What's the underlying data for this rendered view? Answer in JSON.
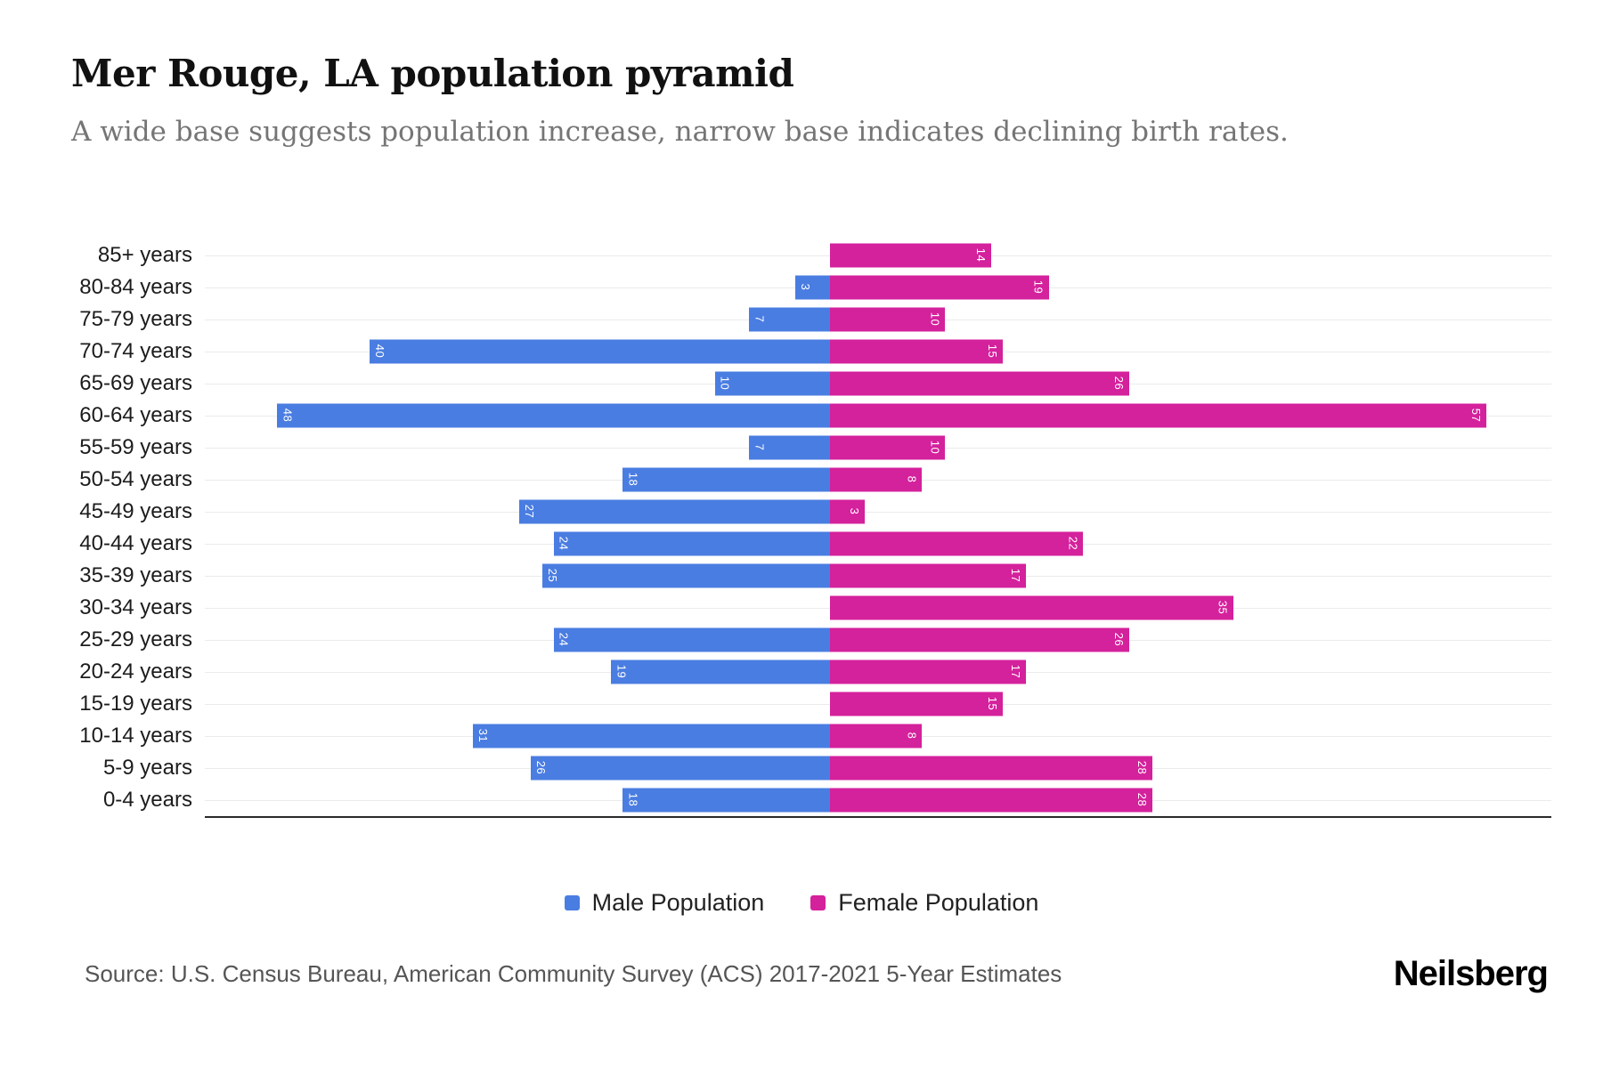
{
  "header": {
    "title": "Mer Rouge, LA population pyramid",
    "subtitle": "A wide base suggests population increase, narrow base indicates declining birth rates."
  },
  "chart_data": {
    "type": "bar",
    "orientation": "horizontal-pyramid",
    "title": "Mer Rouge, LA population pyramid",
    "subtitle": "A wide base suggests population increase, narrow base indicates declining birth rates.",
    "categories": [
      "85+ years",
      "80-84 years",
      "75-79 years",
      "70-74 years",
      "65-69 years",
      "60-64 years",
      "55-59 years",
      "50-54 years",
      "45-49 years",
      "40-44 years",
      "35-39 years",
      "30-34 years",
      "25-29 years",
      "20-24 years",
      "15-19 years",
      "10-14 years",
      "5-9 years",
      "0-4 years"
    ],
    "series": [
      {
        "name": "Male Population",
        "side": "left",
        "color": "#4a7de1",
        "values": [
          0,
          3,
          7,
          40,
          10,
          48,
          7,
          18,
          27,
          24,
          25,
          0,
          24,
          19,
          0,
          31,
          26,
          18
        ]
      },
      {
        "name": "Female Population",
        "side": "right",
        "color": "#d4219c",
        "values": [
          14,
          19,
          10,
          15,
          26,
          57,
          10,
          8,
          3,
          22,
          17,
          35,
          26,
          17,
          15,
          8,
          28,
          28
        ]
      }
    ],
    "value_range": [
      0,
      57
    ],
    "xlabel": "",
    "ylabel": "",
    "grid": "horizontal-light",
    "legend_position": "bottom",
    "bar_labels": "values shown rotated inside bars in white"
  },
  "footer": {
    "source": "Source: U.S. Census Bureau, American Community Survey (ACS) 2017-2021 5-Year Estimates",
    "logo": "Neilsberg"
  }
}
